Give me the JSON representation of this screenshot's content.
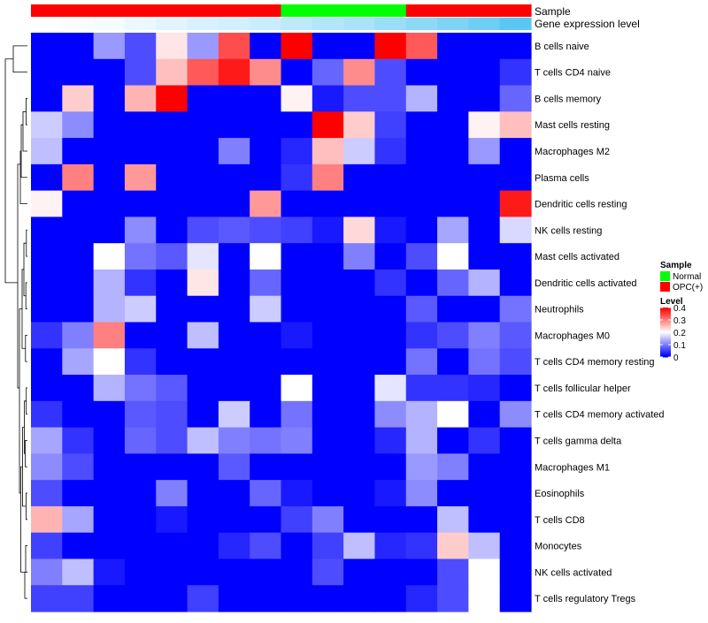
{
  "chart_data": {
    "type": "heatmap",
    "annotation_tracks": [
      {
        "label": "Sample",
        "groups": [
          "OPC(+)",
          "OPC(+)",
          "OPC(+)",
          "OPC(+)",
          "OPC(+)",
          "OPC(+)",
          "OPC(+)",
          "OPC(+)",
          "Normal",
          "Normal",
          "Normal",
          "Normal",
          "OPC(+)",
          "OPC(+)",
          "OPC(+)",
          "OPC(+)"
        ]
      },
      {
        "label": "Gene expression level",
        "values": [
          0.02,
          0.03,
          0.04,
          0.06,
          0.08,
          0.1,
          0.11,
          0.13,
          0.15,
          0.17,
          0.19,
          0.22,
          0.25,
          0.28,
          0.31,
          0.35
        ]
      }
    ],
    "rows": [
      "B cells naive",
      "T cells CD4 naive",
      "B cells memory",
      "Mast cells resting",
      "Macrophages M2",
      "Plasma cells",
      "Dendritic cells resting",
      "NK cells resting",
      "Mast cells activated",
      "Dendritic cells activated",
      "Neutrophils",
      "Macrophages M0",
      "T cells CD4 memory resting",
      "T cells follicular helper",
      "T cells CD4 memory activated",
      "T cells gamma delta",
      "Macrophages M1",
      "Eosinophils",
      "T cells CD8",
      "Monocytes",
      "NK cells activated",
      "T cells regulatory  Tregs"
    ],
    "columns": 16,
    "values": [
      [
        0,
        0,
        0.12,
        0.06,
        0.22,
        0.12,
        0.34,
        0,
        0.4,
        0,
        0,
        0.4,
        0.33,
        0,
        0,
        0
      ],
      [
        0,
        0,
        0,
        0.06,
        0.25,
        0.33,
        0.38,
        0.29,
        0,
        0.08,
        0.29,
        0.06,
        0,
        0,
        0,
        0.04
      ],
      [
        0,
        0.24,
        0,
        0.26,
        0.4,
        0,
        0,
        0,
        0.21,
        0.02,
        0.06,
        0.06,
        0.14,
        0,
        0,
        0.08
      ],
      [
        0.16,
        0.11,
        0,
        0,
        0,
        0,
        0,
        0,
        0,
        0.4,
        0.24,
        0.05,
        0,
        0,
        0.21,
        0.25
      ],
      [
        0.15,
        0,
        0,
        0,
        0,
        0,
        0.1,
        0,
        0.03,
        0.25,
        0.16,
        0.04,
        0,
        0,
        0.12,
        0
      ],
      [
        0,
        0.3,
        0,
        0.28,
        0,
        0,
        0,
        0,
        0.04,
        0.3,
        0,
        0,
        0,
        0,
        0,
        0
      ],
      [
        0.21,
        0,
        0,
        0,
        0,
        0,
        0,
        0.28,
        0,
        0,
        0,
        0,
        0,
        0,
        0,
        0.38
      ],
      [
        0,
        0,
        0,
        0.11,
        0,
        0.06,
        0.07,
        0.06,
        0.05,
        0.02,
        0.23,
        0.02,
        0,
        0.13,
        0,
        0.17
      ],
      [
        0,
        0,
        0.2,
        0.09,
        0.07,
        0.18,
        0,
        0.2,
        0,
        0,
        0.1,
        0,
        0.06,
        0.2,
        0,
        0
      ],
      [
        0,
        0,
        0.14,
        0.04,
        0,
        0.22,
        0,
        0.08,
        0,
        0,
        0,
        0.04,
        0,
        0.08,
        0.14,
        0
      ],
      [
        0,
        0,
        0.14,
        0.16,
        0,
        0,
        0,
        0.16,
        0,
        0,
        0,
        0,
        0.07,
        0,
        0,
        0.09
      ],
      [
        0.04,
        0.1,
        0.3,
        0,
        0,
        0.15,
        0,
        0,
        0.02,
        0,
        0,
        0,
        0.04,
        0.06,
        0.1,
        0.07
      ],
      [
        0,
        0.13,
        0.2,
        0.04,
        0,
        0,
        0,
        0,
        0,
        0,
        0,
        0,
        0.09,
        0,
        0.09,
        0.06
      ],
      [
        0,
        0,
        0.14,
        0.09,
        0.07,
        0,
        0,
        0,
        0.2,
        0,
        0,
        0.18,
        0.04,
        0.04,
        0.03,
        0
      ],
      [
        0.04,
        0,
        0,
        0.07,
        0.06,
        0,
        0.16,
        0,
        0.09,
        0,
        0,
        0.11,
        0.14,
        0.2,
        0,
        0.11
      ],
      [
        0.13,
        0.04,
        0,
        0.08,
        0.06,
        0.15,
        0.1,
        0.09,
        0.1,
        0,
        0,
        0.03,
        0.14,
        0,
        0.04,
        0
      ],
      [
        0.11,
        0.06,
        0,
        0,
        0,
        0,
        0.07,
        0,
        0,
        0,
        0,
        0,
        0.12,
        0.1,
        0,
        0
      ],
      [
        0.06,
        0,
        0,
        0,
        0.1,
        0,
        0,
        0.08,
        0.02,
        0,
        0,
        0.02,
        0.11,
        0,
        0,
        0
      ],
      [
        0.26,
        0.13,
        0,
        0,
        0.02,
        0,
        0,
        0,
        0.05,
        0.1,
        0,
        0,
        0,
        0.15,
        0,
        0
      ],
      [
        0.05,
        0,
        0,
        0,
        0,
        0,
        0.03,
        0.06,
        0,
        0.05,
        0.15,
        0.03,
        0.04,
        0.24,
        0.15,
        0
      ],
      [
        0.1,
        0.15,
        0.02,
        0,
        0,
        0,
        0,
        0,
        0,
        0.06,
        0,
        0,
        0,
        0.06,
        0.2,
        0
      ],
      [
        0.05,
        0.05,
        0,
        0,
        0,
        0.05,
        0,
        0,
        0,
        0,
        0,
        0,
        0.03,
        0.06,
        0.2,
        0
      ]
    ],
    "color_scale": {
      "min": 0,
      "max": 0.4,
      "colors": [
        "#0000ff",
        "#ffffff",
        "#ff0000"
      ]
    },
    "legends": {
      "sample": {
        "title": "Sample",
        "entries": [
          {
            "label": "Normal",
            "color": "#00ff00"
          },
          {
            "label": "OPC(+)",
            "color": "#ff0000"
          }
        ]
      },
      "level": {
        "title": "Level",
        "ticks": [
          "0.4",
          "0.3",
          "0.2",
          "0.1",
          "0"
        ]
      }
    },
    "dendrogram": "rows"
  }
}
